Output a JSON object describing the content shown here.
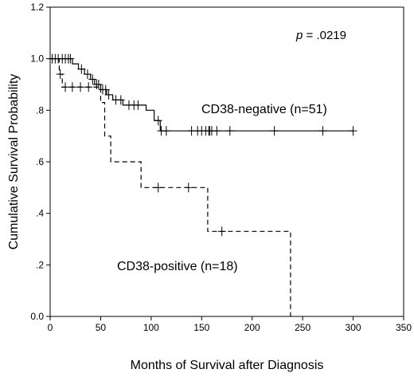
{
  "chart_data": {
    "type": "line",
    "xlabel": "Months of Survival after Diagnosis",
    "ylabel": "Cumulative Survival Probability",
    "xlim": [
      0,
      350
    ],
    "ylim": [
      0.0,
      1.2
    ],
    "x_ticks": [
      0,
      50,
      100,
      150,
      200,
      250,
      300,
      350
    ],
    "y_ticks": [
      0.0,
      0.2,
      0.4,
      0.6,
      0.8,
      1.0,
      1.2
    ],
    "x_tick_labels": [
      "0",
      "50",
      "100",
      "150",
      "200",
      "250",
      "300",
      "350"
    ],
    "y_tick_labels": [
      "0.0",
      ".2",
      ".4",
      ".6",
      ".8",
      "1.0",
      "1.2"
    ],
    "grid": false,
    "p_value": {
      "prefix": "p",
      "text": " = .0219"
    },
    "series": [
      {
        "name": "CD38-negative (n=51)",
        "line_style": "solid",
        "steps": [
          [
            0,
            1.0
          ],
          [
            22,
            0.98
          ],
          [
            28,
            0.96
          ],
          [
            34,
            0.94
          ],
          [
            40,
            0.92
          ],
          [
            44,
            0.9
          ],
          [
            50,
            0.88
          ],
          [
            56,
            0.86
          ],
          [
            62,
            0.84
          ],
          [
            72,
            0.82
          ],
          [
            95,
            0.8
          ],
          [
            103,
            0.76
          ],
          [
            109,
            0.72
          ],
          [
            300,
            0.72
          ]
        ],
        "censored": [
          2,
          5,
          8,
          12,
          15,
          18,
          20,
          31,
          37,
          42,
          46,
          48,
          52,
          55,
          58,
          65,
          70,
          78,
          83,
          87,
          107,
          110,
          115,
          140,
          146,
          150,
          154,
          157,
          158,
          160,
          165,
          178,
          222,
          270,
          300
        ]
      },
      {
        "name": "CD38-positive (n=18)",
        "line_style": "dashed",
        "steps": [
          [
            0,
            1.0
          ],
          [
            9,
            0.94
          ],
          [
            12,
            0.89
          ],
          [
            50,
            0.83
          ],
          [
            54,
            0.7
          ],
          [
            60,
            0.6
          ],
          [
            90,
            0.5
          ],
          [
            156,
            0.33
          ],
          [
            238,
            0.0
          ]
        ],
        "censored": [
          10,
          15,
          22,
          30,
          38,
          107,
          137,
          170
        ]
      }
    ],
    "annotations": [
      {
        "series": 0,
        "text": "CD38-negative (n=51)"
      },
      {
        "series": 1,
        "text": "CD38-positive (n=18)"
      }
    ]
  }
}
